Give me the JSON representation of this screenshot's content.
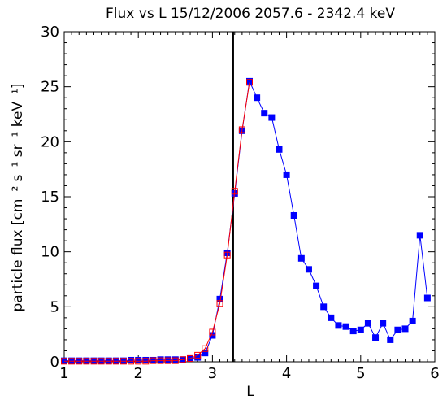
{
  "chart_data": {
    "type": "line",
    "title": "Flux vs L 15/12/2006 2057.6 - 2342.4 keV",
    "xlabel": "L",
    "ylabel": "particle flux [cm⁻² s⁻¹ sr⁻¹ keV⁻¹]",
    "xlim": [
      1,
      6
    ],
    "ylim": [
      0,
      30
    ],
    "xticks": [
      1,
      2,
      3,
      4,
      5,
      6
    ],
    "yticks": [
      0,
      5,
      10,
      15,
      20,
      25,
      30
    ],
    "grid": false,
    "vline_x": 3.28,
    "series": [
      {
        "color": "#0000ff",
        "marker": "filled-square",
        "x": [
          1.0,
          1.1,
          1.2,
          1.3,
          1.4,
          1.5,
          1.6,
          1.7,
          1.8,
          1.9,
          2.0,
          2.1,
          2.2,
          2.3,
          2.4,
          2.5,
          2.6,
          2.7,
          2.8,
          2.9,
          3.0,
          3.1,
          3.2,
          3.3,
          3.4,
          3.5,
          3.6,
          3.7,
          3.8,
          3.9,
          4.0,
          4.1,
          4.2,
          4.3,
          4.4,
          4.5,
          4.6,
          4.7,
          4.8,
          4.9,
          5.0,
          5.1,
          5.2,
          5.3,
          5.4,
          5.5,
          5.6,
          5.7,
          5.8,
          5.9
        ],
        "y": [
          0.1,
          0.1,
          0.1,
          0.1,
          0.1,
          0.1,
          0.1,
          0.1,
          0.1,
          0.15,
          0.15,
          0.15,
          0.15,
          0.2,
          0.2,
          0.2,
          0.2,
          0.3,
          0.4,
          0.8,
          2.4,
          5.7,
          9.9,
          15.3,
          21.0,
          25.5,
          24.0,
          22.6,
          22.2,
          19.3,
          17.0,
          13.3,
          9.4,
          8.4,
          6.9,
          5.0,
          4.0,
          3.3,
          3.2,
          2.8,
          2.9,
          3.5,
          2.2,
          3.5,
          2.0,
          2.9,
          3.0,
          3.7,
          11.5,
          5.8
        ]
      },
      {
        "color": "#ff0000",
        "marker": "open-square",
        "x": [
          1.0,
          1.1,
          1.2,
          1.3,
          1.4,
          1.5,
          1.6,
          1.7,
          1.8,
          1.9,
          2.0,
          2.1,
          2.2,
          2.3,
          2.4,
          2.5,
          2.6,
          2.7,
          2.8,
          2.9,
          3.0,
          3.1,
          3.2,
          3.3,
          3.4,
          3.5
        ],
        "y": [
          0.05,
          0.05,
          0.05,
          0.05,
          0.05,
          0.05,
          0.05,
          0.05,
          0.05,
          0.05,
          0.05,
          0.05,
          0.1,
          0.1,
          0.1,
          0.1,
          0.2,
          0.3,
          0.6,
          1.2,
          2.7,
          5.3,
          9.7,
          15.5,
          21.1,
          25.4
        ]
      }
    ]
  }
}
